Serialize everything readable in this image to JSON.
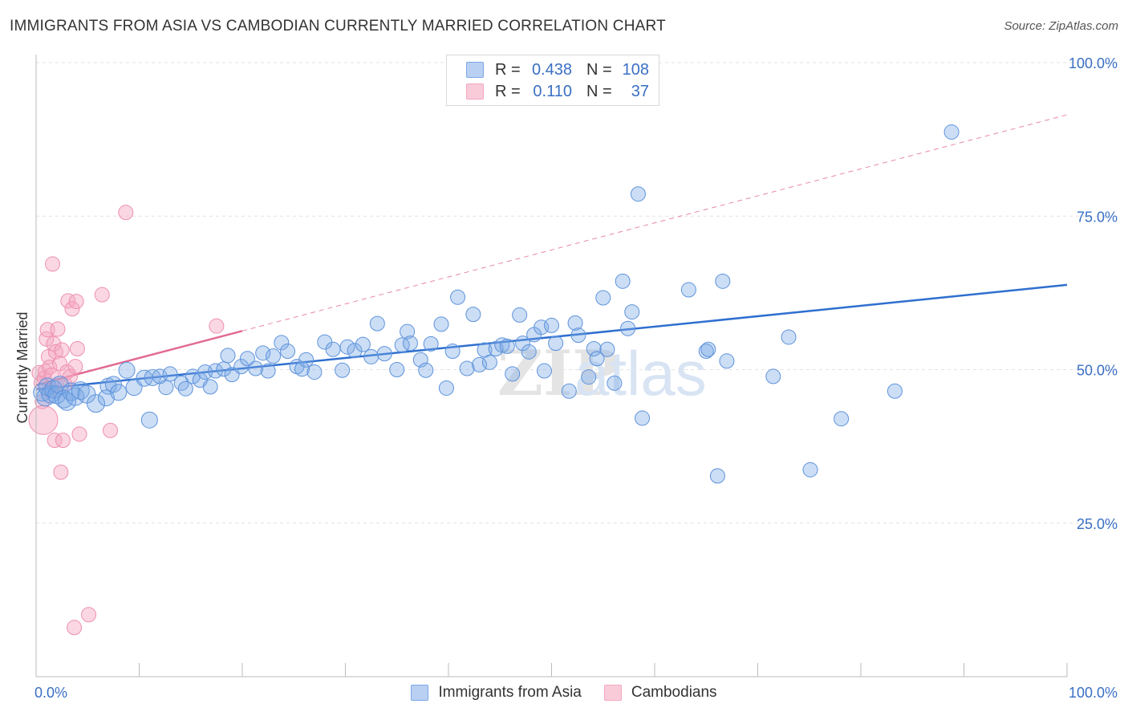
{
  "title": "IMMIGRANTS FROM ASIA VS CAMBODIAN CURRENTLY MARRIED CORRELATION CHART",
  "source": "Source: ZipAtlas.com",
  "watermark_left": "ZIP",
  "watermark_right": "atlas",
  "legend": {
    "rows": [
      {
        "r_label": "R =",
        "r_value": "0.438",
        "n_label": "N =",
        "n_value": "108"
      },
      {
        "r_label": "R =",
        "r_value": "0.110",
        "n_label": "N =",
        "n_value": "37"
      }
    ]
  },
  "colors": {
    "blue": "#7aa7e6",
    "blue_line": "#2f6fcf",
    "pink": "#f4a7c0",
    "pink_line": "#e26a93",
    "axis_text": "#3a6fc4",
    "grid": "#dddddd"
  },
  "chart_data": {
    "type": "scatter",
    "title": "IMMIGRANTS FROM ASIA VS CAMBODIAN CURRENTLY MARRIED CORRELATION CHART",
    "xlabel": "",
    "ylabel": "Currently Married",
    "xlim": [
      0,
      100
    ],
    "ylim": [
      0,
      100
    ],
    "x_tick_labels": [
      "0.0%",
      "100.0%"
    ],
    "y_ticks": [
      25,
      50,
      75,
      100
    ],
    "y_tick_labels": [
      "25.0%",
      "50.0%",
      "75.0%",
      "100.0%"
    ],
    "series": [
      {
        "name": "Immigrants from Asia",
        "color": "#7aa7e6",
        "R": 0.438,
        "N": 108,
        "trend": {
          "x0": 0,
          "y0": 46.8,
          "x1": 100,
          "y1": 63.8
        },
        "points": [
          [
            0.6,
            46.3
          ],
          [
            0.9,
            45.5
          ],
          [
            1.1,
            47.2
          ],
          [
            1.4,
            46.0
          ],
          [
            1.7,
            46.8
          ],
          [
            2.0,
            45.9
          ],
          [
            2.3,
            47.5
          ],
          [
            2.7,
            45.2
          ],
          [
            3.0,
            44.8
          ],
          [
            3.4,
            46.4
          ],
          [
            3.8,
            45.6
          ],
          [
            4.3,
            46.6
          ],
          [
            4.9,
            46.0
          ],
          [
            5.8,
            44.5
          ],
          [
            7.0,
            47.3
          ],
          [
            6.8,
            45.4
          ],
          [
            7.5,
            47.6
          ],
          [
            8.0,
            46.3
          ],
          [
            8.8,
            49.9
          ],
          [
            9.5,
            47.1
          ],
          [
            10.5,
            48.6
          ],
          [
            11.3,
            48.7
          ],
          [
            12.0,
            48.9
          ],
          [
            12.6,
            47.1
          ],
          [
            13.0,
            49.3
          ],
          [
            11.0,
            41.8
          ],
          [
            14.1,
            47.8
          ],
          [
            14.5,
            46.9
          ],
          [
            15.2,
            48.9
          ],
          [
            15.9,
            48.3
          ],
          [
            16.4,
            49.6
          ],
          [
            16.9,
            47.2
          ],
          [
            17.4,
            49.8
          ],
          [
            18.2,
            50.1
          ],
          [
            18.6,
            52.3
          ],
          [
            19.0,
            49.2
          ],
          [
            19.9,
            50.5
          ],
          [
            20.5,
            51.8
          ],
          [
            21.3,
            50.2
          ],
          [
            22.0,
            52.7
          ],
          [
            22.5,
            49.8
          ],
          [
            23.0,
            52.2
          ],
          [
            23.8,
            54.4
          ],
          [
            24.4,
            53.0
          ],
          [
            25.3,
            50.5
          ],
          [
            25.8,
            50.1
          ],
          [
            26.2,
            51.6
          ],
          [
            27.0,
            49.6
          ],
          [
            28.0,
            54.5
          ],
          [
            28.8,
            53.3
          ],
          [
            29.7,
            49.9
          ],
          [
            30.2,
            53.7
          ],
          [
            30.9,
            53.1
          ],
          [
            31.7,
            54.1
          ],
          [
            32.5,
            52.1
          ],
          [
            33.1,
            57.5
          ],
          [
            33.8,
            52.6
          ],
          [
            35.0,
            50.0
          ],
          [
            35.5,
            54.0
          ],
          [
            36.0,
            56.2
          ],
          [
            36.3,
            54.3
          ],
          [
            37.3,
            51.6
          ],
          [
            37.8,
            49.9
          ],
          [
            38.3,
            54.2
          ],
          [
            39.3,
            57.4
          ],
          [
            39.8,
            47.0
          ],
          [
            40.4,
            53.0
          ],
          [
            40.9,
            61.8
          ],
          [
            41.8,
            50.2
          ],
          [
            42.4,
            59.0
          ],
          [
            43.0,
            50.8
          ],
          [
            43.5,
            53.2
          ],
          [
            44.0,
            51.2
          ],
          [
            44.6,
            53.4
          ],
          [
            45.2,
            54.0
          ],
          [
            45.7,
            53.8
          ],
          [
            46.2,
            49.3
          ],
          [
            46.9,
            58.9
          ],
          [
            47.2,
            54.3
          ],
          [
            47.8,
            52.9
          ],
          [
            48.3,
            55.7
          ],
          [
            49.0,
            56.9
          ],
          [
            49.3,
            49.8
          ],
          [
            50.0,
            57.2
          ],
          [
            50.4,
            54.3
          ],
          [
            51.7,
            46.5
          ],
          [
            52.3,
            57.6
          ],
          [
            52.6,
            55.6
          ],
          [
            53.6,
            48.8
          ],
          [
            54.1,
            53.4
          ],
          [
            54.4,
            51.8
          ],
          [
            55.0,
            61.7
          ],
          [
            55.4,
            53.3
          ],
          [
            56.1,
            47.8
          ],
          [
            56.9,
            64.4
          ],
          [
            57.4,
            56.7
          ],
          [
            57.8,
            59.4
          ],
          [
            58.4,
            78.6
          ],
          [
            58.8,
            42.1
          ],
          [
            63.3,
            63.0
          ],
          [
            65.0,
            53.0
          ],
          [
            65.2,
            53.3
          ],
          [
            66.1,
            32.7
          ],
          [
            66.6,
            64.4
          ],
          [
            67.0,
            51.4
          ],
          [
            71.5,
            48.9
          ],
          [
            73.0,
            55.3
          ],
          [
            75.1,
            33.7
          ],
          [
            78.1,
            42.0
          ],
          [
            83.3,
            46.5
          ],
          [
            88.8,
            88.7
          ]
        ]
      },
      {
        "name": "Cambodians",
        "color": "#f4a7c0",
        "R": 0.11,
        "N": 37,
        "trend": {
          "x0": 0,
          "y0": 47.5,
          "x1": 20,
          "y1": 56.3
        },
        "trend_dashed": {
          "x0": 20,
          "y0": 56.3,
          "x1": 100,
          "y1": 91.5
        },
        "points": [
          [
            0.3,
            49.5
          ],
          [
            0.5,
            47.8
          ],
          [
            0.6,
            44.8
          ],
          [
            0.7,
            41.8
          ],
          [
            0.8,
            48.6
          ],
          [
            0.9,
            49.7
          ],
          [
            1.0,
            55.0
          ],
          [
            1.1,
            56.5
          ],
          [
            1.2,
            52.1
          ],
          [
            1.3,
            50.4
          ],
          [
            1.4,
            46.6
          ],
          [
            1.5,
            49.1
          ],
          [
            1.6,
            67.2
          ],
          [
            1.7,
            54.2
          ],
          [
            1.8,
            38.5
          ],
          [
            1.9,
            52.9
          ],
          [
            2.0,
            47.4
          ],
          [
            2.1,
            56.6
          ],
          [
            2.3,
            51.0
          ],
          [
            2.4,
            33.3
          ],
          [
            2.5,
            53.2
          ],
          [
            2.6,
            38.5
          ],
          [
            2.8,
            47.6
          ],
          [
            3.0,
            49.6
          ],
          [
            3.1,
            61.2
          ],
          [
            3.3,
            48.9
          ],
          [
            3.5,
            59.9
          ],
          [
            3.7,
            8.0
          ],
          [
            3.8,
            50.5
          ],
          [
            3.9,
            61.1
          ],
          [
            4.0,
            53.4
          ],
          [
            4.2,
            39.5
          ],
          [
            5.1,
            10.1
          ],
          [
            6.4,
            62.2
          ],
          [
            7.2,
            40.1
          ],
          [
            8.7,
            75.6
          ],
          [
            17.5,
            57.1
          ]
        ]
      }
    ]
  }
}
